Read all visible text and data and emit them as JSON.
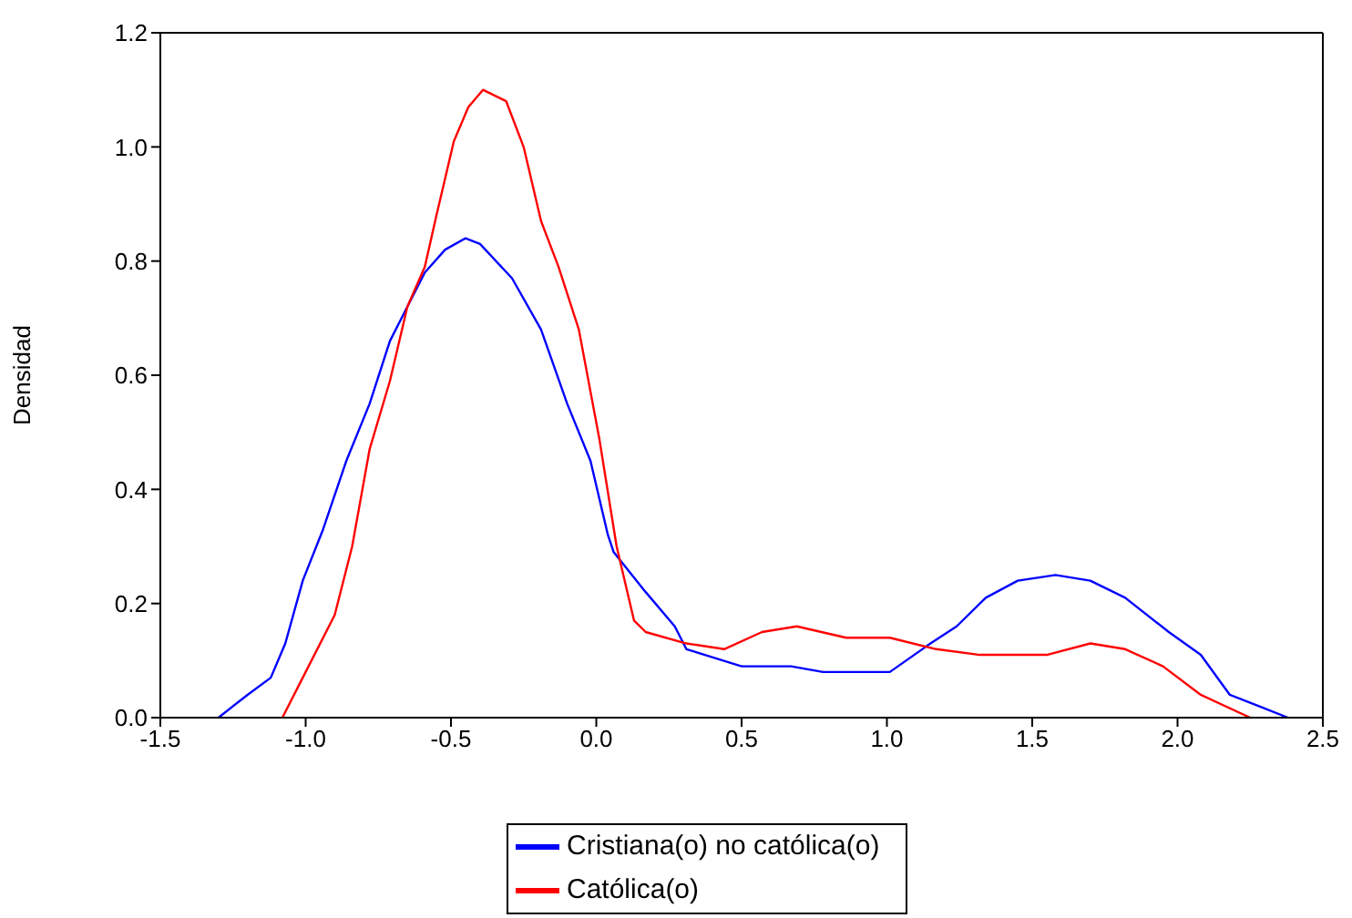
{
  "chart_data": {
    "type": "line",
    "ylabel": "Densidad",
    "legend": "bottom",
    "marker": "none",
    "line_style": "solid",
    "xlim": [
      -1.5,
      2.5
    ],
    "ylim": [
      0,
      1.2
    ],
    "xticks": [
      -1.5,
      {
        "value": -1,
        "label": "-1.0"
      },
      -0.5,
      {
        "value": 0,
        "label": "0.0"
      },
      0.5,
      {
        "value": 1,
        "label": "1.0"
      },
      1.5,
      {
        "value": 2,
        "label": "2.0"
      },
      2.5
    ],
    "yticks": [
      {
        "value": 0,
        "label": "0.0"
      },
      0.2,
      0.4,
      0.6,
      0.8,
      {
        "value": 1,
        "label": "1.0"
      },
      1.2
    ],
    "series": [
      {
        "name": "Cristiana(o) no católica(o)",
        "color": "#0000ff",
        "x": [
          -1.3,
          -1.2,
          -1.12,
          -1.07,
          -1.01,
          -0.94,
          -0.86,
          -0.78,
          -0.71,
          -0.65,
          -0.59,
          -0.52,
          -0.45,
          -0.4,
          -0.29,
          -0.19,
          -0.1,
          -0.02,
          0.04,
          0.06,
          0.17,
          0.27,
          0.31,
          0.5,
          0.67,
          0.78,
          1.01,
          1.15,
          1.24,
          1.34,
          1.45,
          1.58,
          1.7,
          1.82,
          1.97,
          2.08,
          2.18,
          2.28,
          2.38
        ],
        "values": [
          0,
          0.04,
          0.07,
          0.13,
          0.24,
          0.33,
          0.45,
          0.55,
          0.66,
          0.72,
          0.78,
          0.82,
          0.84,
          0.83,
          0.77,
          0.68,
          0.55,
          0.45,
          0.32,
          0.29,
          0.22,
          0.16,
          0.12,
          0.09,
          0.09,
          0.08,
          0.08,
          0.13,
          0.16,
          0.21,
          0.24,
          0.25,
          0.24,
          0.21,
          0.15,
          0.11,
          0.04,
          0.02,
          0
        ]
      },
      {
        "name": "Católica(o)",
        "color": "#ff0000",
        "x": [
          -1.08,
          -1.01,
          -0.9,
          -0.84,
          -0.78,
          -0.71,
          -0.65,
          -0.59,
          -0.55,
          -0.49,
          -0.44,
          -0.39,
          -0.31,
          -0.25,
          -0.19,
          -0.13,
          -0.06,
          0.01,
          0.07,
          0.13,
          0.17,
          0.31,
          0.44,
          0.57,
          0.69,
          0.86,
          1.01,
          1.17,
          1.32,
          1.55,
          1.7,
          1.82,
          1.95,
          2.08,
          2.25
        ],
        "values": [
          0,
          0.07,
          0.18,
          0.3,
          0.47,
          0.59,
          0.72,
          0.79,
          0.88,
          1.01,
          1.07,
          1.1,
          1.08,
          1.0,
          0.87,
          0.79,
          0.68,
          0.49,
          0.3,
          0.17,
          0.15,
          0.13,
          0.12,
          0.15,
          0.16,
          0.14,
          0.14,
          0.12,
          0.11,
          0.11,
          0.13,
          0.12,
          0.09,
          0.04,
          0
        ]
      }
    ]
  }
}
